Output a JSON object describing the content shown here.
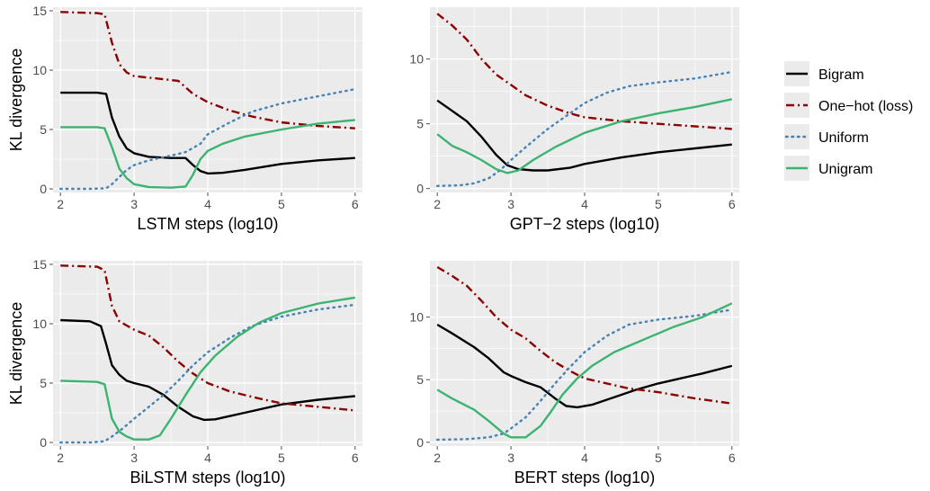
{
  "colors": {
    "panel_bg": "#ebebeb",
    "grid_major": "#ffffff",
    "tick": "#4d4d4d",
    "bigram": "#000000",
    "onehot": "#8b0000",
    "uniform": "#4682b4",
    "unigram": "#3cb371"
  },
  "legend": {
    "position": "right",
    "items": [
      {
        "key": "bigram",
        "label": "Bigram",
        "color": "#000000",
        "dash": "solid"
      },
      {
        "key": "onehot",
        "label": "One−hot (loss)",
        "color": "#8b0000",
        "dash": "dashdot"
      },
      {
        "key": "uniform",
        "label": "Uniform",
        "color": "#4682b4",
        "dash": "dotted"
      },
      {
        "key": "unigram",
        "label": "Unigram",
        "color": "#3cb371",
        "dash": "solid"
      }
    ]
  },
  "chart_data": [
    {
      "type": "line",
      "xlabel": "LSTM steps (log10)",
      "ylabel": "KL divergence",
      "xlim": [
        1.9,
        6.1
      ],
      "ylim": [
        -0.3,
        15.3
      ],
      "xticks": [
        2,
        3,
        4,
        5,
        6
      ],
      "yticks": [
        0,
        5,
        10,
        15
      ],
      "grid": true,
      "series": [
        {
          "key": "bigram",
          "x": [
            2.0,
            2.5,
            2.62,
            2.7,
            2.8,
            2.9,
            3.0,
            3.2,
            3.5,
            3.7,
            3.8,
            3.9,
            4.0,
            4.2,
            4.5,
            5.0,
            5.5,
            6.0
          ],
          "y": [
            8.1,
            8.1,
            8.0,
            6.0,
            4.4,
            3.4,
            3.0,
            2.7,
            2.6,
            2.6,
            2.0,
            1.5,
            1.3,
            1.35,
            1.6,
            2.1,
            2.4,
            2.6
          ]
        },
        {
          "key": "onehot",
          "x": [
            2.0,
            2.5,
            2.6,
            2.7,
            2.8,
            2.9,
            3.0,
            3.3,
            3.6,
            3.8,
            4.0,
            4.3,
            4.6,
            5.0,
            5.5,
            6.0
          ],
          "y": [
            14.9,
            14.8,
            14.7,
            12.3,
            10.5,
            9.8,
            9.5,
            9.3,
            9.1,
            8.0,
            7.3,
            6.6,
            6.1,
            5.6,
            5.3,
            5.1
          ]
        },
        {
          "key": "uniform",
          "x": [
            2.0,
            2.4,
            2.62,
            2.7,
            2.8,
            2.9,
            3.0,
            3.2,
            3.5,
            3.7,
            3.9,
            4.0,
            4.3,
            4.6,
            5.0,
            5.5,
            6.0
          ],
          "y": [
            0.0,
            0.0,
            0.05,
            0.4,
            1.0,
            1.6,
            2.0,
            2.4,
            2.8,
            3.1,
            3.8,
            4.6,
            5.6,
            6.5,
            7.2,
            7.8,
            8.4
          ]
        },
        {
          "key": "unigram",
          "x": [
            2.0,
            2.5,
            2.6,
            2.7,
            2.8,
            2.9,
            3.0,
            3.2,
            3.5,
            3.7,
            3.8,
            3.9,
            4.0,
            4.2,
            4.5,
            5.0,
            5.5,
            6.0
          ],
          "y": [
            5.2,
            5.2,
            5.1,
            3.5,
            1.7,
            0.9,
            0.4,
            0.15,
            0.1,
            0.2,
            1.2,
            2.5,
            3.2,
            3.8,
            4.4,
            5.0,
            5.5,
            5.8
          ]
        }
      ]
    },
    {
      "type": "line",
      "xlabel": "GPT−2 steps (log10)",
      "ylabel": "",
      "xlim": [
        1.9,
        6.1
      ],
      "ylim": [
        -0.3,
        14.0
      ],
      "xticks": [
        2,
        3,
        4,
        5,
        6
      ],
      "yticks": [
        0,
        5,
        10
      ],
      "grid": true,
      "series": [
        {
          "key": "bigram",
          "x": [
            2.0,
            2.2,
            2.4,
            2.6,
            2.8,
            2.95,
            3.1,
            3.3,
            3.5,
            3.8,
            4.0,
            4.5,
            5.0,
            5.5,
            6.0
          ],
          "y": [
            6.8,
            6.0,
            5.2,
            4.0,
            2.6,
            1.8,
            1.5,
            1.4,
            1.4,
            1.6,
            1.9,
            2.4,
            2.8,
            3.1,
            3.4
          ]
        },
        {
          "key": "onehot",
          "x": [
            2.0,
            2.2,
            2.4,
            2.6,
            2.8,
            3.0,
            3.2,
            3.5,
            3.8,
            4.0,
            4.5,
            5.0,
            5.5,
            6.0
          ],
          "y": [
            13.5,
            12.6,
            11.5,
            10.0,
            8.8,
            8.0,
            7.2,
            6.4,
            5.8,
            5.5,
            5.2,
            5.0,
            4.8,
            4.6
          ]
        },
        {
          "key": "uniform",
          "x": [
            2.0,
            2.3,
            2.5,
            2.7,
            2.85,
            3.0,
            3.2,
            3.5,
            3.8,
            4.0,
            4.3,
            4.6,
            5.0,
            5.5,
            6.0
          ],
          "y": [
            0.2,
            0.25,
            0.4,
            0.8,
            1.4,
            2.2,
            3.2,
            4.6,
            5.8,
            6.6,
            7.4,
            7.9,
            8.2,
            8.5,
            9.0
          ]
        },
        {
          "key": "unigram",
          "x": [
            2.0,
            2.2,
            2.4,
            2.6,
            2.8,
            2.95,
            3.1,
            3.3,
            3.6,
            4.0,
            4.5,
            5.0,
            5.5,
            6.0
          ],
          "y": [
            4.2,
            3.3,
            2.8,
            2.2,
            1.5,
            1.2,
            1.4,
            2.2,
            3.2,
            4.3,
            5.2,
            5.8,
            6.3,
            6.9
          ]
        }
      ]
    },
    {
      "type": "line",
      "xlabel": "BiLSTM steps (log10)",
      "ylabel": "KL divergence",
      "xlim": [
        1.9,
        6.1
      ],
      "ylim": [
        -0.3,
        15.3
      ],
      "xticks": [
        2,
        3,
        4,
        5,
        6
      ],
      "yticks": [
        0,
        5,
        10,
        15
      ],
      "grid": true,
      "series": [
        {
          "key": "bigram",
          "x": [
            2.0,
            2.4,
            2.55,
            2.62,
            2.7,
            2.8,
            2.9,
            3.0,
            3.2,
            3.4,
            3.6,
            3.8,
            3.95,
            4.1,
            4.5,
            5.0,
            5.5,
            6.0
          ],
          "y": [
            10.3,
            10.2,
            9.8,
            8.3,
            6.5,
            5.7,
            5.2,
            5.0,
            4.7,
            4.0,
            3.0,
            2.2,
            1.9,
            1.95,
            2.5,
            3.2,
            3.6,
            3.9
          ]
        },
        {
          "key": "onehot",
          "x": [
            2.0,
            2.5,
            2.6,
            2.7,
            2.8,
            3.0,
            3.2,
            3.4,
            3.6,
            3.8,
            4.0,
            4.3,
            4.7,
            5.0,
            5.5,
            6.0
          ],
          "y": [
            14.9,
            14.8,
            14.5,
            11.5,
            10.2,
            9.5,
            9.0,
            8.0,
            6.8,
            5.8,
            5.0,
            4.3,
            3.7,
            3.3,
            3.0,
            2.7
          ]
        },
        {
          "key": "uniform",
          "x": [
            2.0,
            2.4,
            2.6,
            2.7,
            2.85,
            3.0,
            3.2,
            3.4,
            3.6,
            3.8,
            4.0,
            4.3,
            4.6,
            5.0,
            5.5,
            6.0
          ],
          "y": [
            0.0,
            0.0,
            0.1,
            0.5,
            1.2,
            2.0,
            3.0,
            4.0,
            5.2,
            6.5,
            7.6,
            8.8,
            9.8,
            10.6,
            11.2,
            11.6
          ]
        },
        {
          "key": "unigram",
          "x": [
            2.0,
            2.5,
            2.6,
            2.7,
            2.8,
            2.9,
            3.0,
            3.2,
            3.35,
            3.5,
            3.7,
            3.9,
            4.1,
            4.4,
            4.7,
            5.0,
            5.5,
            6.0
          ],
          "y": [
            5.2,
            5.1,
            4.9,
            2.0,
            0.9,
            0.5,
            0.25,
            0.25,
            0.6,
            2.0,
            4.0,
            5.9,
            7.3,
            8.9,
            10.1,
            10.9,
            11.7,
            12.2
          ]
        }
      ]
    },
    {
      "type": "line",
      "xlabel": "BERT steps (log10)",
      "ylabel": "",
      "xlim": [
        1.9,
        6.1
      ],
      "ylim": [
        -0.3,
        14.5
      ],
      "xticks": [
        2,
        3,
        4,
        5,
        6
      ],
      "yticks": [
        0,
        5,
        10
      ],
      "grid": true,
      "series": [
        {
          "key": "bigram",
          "x": [
            2.0,
            2.2,
            2.5,
            2.7,
            2.9,
            3.0,
            3.2,
            3.4,
            3.6,
            3.75,
            3.9,
            4.1,
            4.4,
            4.7,
            5.0,
            5.3,
            5.6,
            6.0
          ],
          "y": [
            9.4,
            8.7,
            7.6,
            6.7,
            5.6,
            5.3,
            4.8,
            4.4,
            3.5,
            2.9,
            2.8,
            3.0,
            3.6,
            4.2,
            4.7,
            5.1,
            5.5,
            6.1
          ]
        },
        {
          "key": "onehot",
          "x": [
            2.0,
            2.2,
            2.4,
            2.6,
            2.8,
            3.0,
            3.2,
            3.4,
            3.6,
            3.8,
            4.0,
            4.3,
            4.6,
            5.0,
            5.5,
            6.0
          ],
          "y": [
            14.0,
            13.3,
            12.5,
            11.3,
            10.0,
            9.0,
            8.3,
            7.3,
            6.4,
            5.7,
            5.1,
            4.7,
            4.3,
            4.0,
            3.5,
            3.1
          ]
        },
        {
          "key": "uniform",
          "x": [
            2.0,
            2.4,
            2.7,
            2.9,
            3.0,
            3.2,
            3.4,
            3.6,
            3.8,
            4.0,
            4.3,
            4.6,
            5.0,
            5.5,
            6.0
          ],
          "y": [
            0.2,
            0.25,
            0.4,
            0.7,
            1.1,
            2.0,
            3.3,
            4.7,
            6.0,
            7.2,
            8.5,
            9.4,
            9.8,
            10.1,
            10.6
          ]
        },
        {
          "key": "unigram",
          "x": [
            2.0,
            2.2,
            2.5,
            2.7,
            2.9,
            3.0,
            3.1,
            3.2,
            3.4,
            3.55,
            3.7,
            3.9,
            4.1,
            4.4,
            4.8,
            5.2,
            5.6,
            6.0
          ],
          "y": [
            4.2,
            3.5,
            2.6,
            1.7,
            0.7,
            0.4,
            0.4,
            0.4,
            1.3,
            2.5,
            3.8,
            5.1,
            6.1,
            7.2,
            8.2,
            9.2,
            10.0,
            11.1
          ]
        }
      ]
    }
  ]
}
